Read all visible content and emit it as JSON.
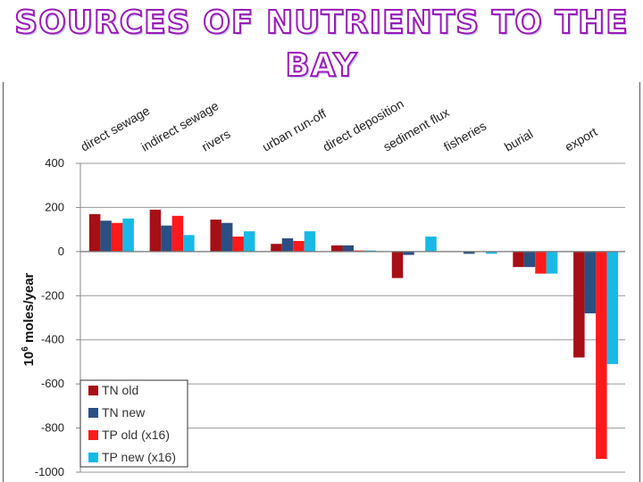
{
  "title": {
    "line1": "SOURCES OF NUTRIENTS TO THE",
    "line2": "BAY"
  },
  "colors": {
    "title_stroke": "#9a1ab8",
    "tn_old": "#a50f15",
    "tn_new": "#2b4f82",
    "tp_old": "#ff1a1a",
    "tp_new": "#19b9e6"
  },
  "chart_data": {
    "type": "bar",
    "title": "",
    "xlabel": "",
    "ylabel_base": "10",
    "ylabel_exp": "6",
    "ylabel_rest": " moles/year",
    "ylim": [
      -1000,
      400
    ],
    "yticks": [
      "400",
      "200",
      "0",
      "-200",
      "-400",
      "-600",
      "-800",
      "-1000"
    ],
    "ytick_values": [
      400,
      200,
      0,
      -200,
      -400,
      -600,
      -800,
      -1000
    ],
    "categories": [
      "direct sewage",
      "indirect sewage",
      "rivers",
      "urban run-off",
      "direct deposition",
      "sediment flux",
      "fisheries",
      "burial",
      "export"
    ],
    "legend_position": "bottom-left",
    "series": [
      {
        "name": "TN old",
        "color_key": "tn_old",
        "values": [
          170,
          190,
          145,
          35,
          28,
          -120,
          0,
          -70,
          -480
        ]
      },
      {
        "name": "TN new",
        "color_key": "tn_new",
        "values": [
          140,
          118,
          130,
          60,
          28,
          -15,
          -10,
          -70,
          -280
        ]
      },
      {
        "name": "TP old (x16)",
        "color_key": "tp_old",
        "values": [
          130,
          162,
          68,
          48,
          5,
          0,
          0,
          -100,
          -940
        ]
      },
      {
        "name": "TP new (x16)",
        "color_key": "tp_new",
        "values": [
          150,
          75,
          92,
          92,
          5,
          68,
          -10,
          -100,
          -510
        ]
      }
    ]
  }
}
